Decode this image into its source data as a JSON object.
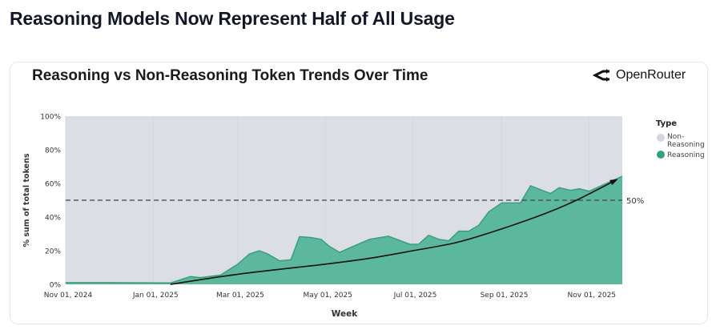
{
  "page": {
    "heading": "Reasoning Models Now Represent Half of All Usage",
    "chart_title": "Reasoning vs Non-Reasoning Token Trends Over Time",
    "brand": "OpenRouter",
    "brand_icon": "openrouter-logo-icon"
  },
  "colors": {
    "reasoning": "#5cb89c",
    "reasoning_line": "#3a9e7c",
    "non_reasoning": "#dcdee6",
    "legend_non": "#d5d7de",
    "legend_reasoning": "#2fa37a"
  },
  "chart_data": {
    "type": "area",
    "title": "Reasoning vs Non-Reasoning Token Trends Over Time",
    "xlabel": "Week",
    "ylabel": "% sum of total tokens",
    "ylim": [
      0,
      100
    ],
    "xlim": [
      "2024-11-01",
      "2025-11-24"
    ],
    "yticks": [
      0,
      20,
      40,
      60,
      80,
      100
    ],
    "ytick_labels": [
      "0%",
      "20%",
      "40%",
      "60%",
      "80%",
      "100%"
    ],
    "xticks": [
      "2024-11-01",
      "2025-01-01",
      "2025-03-01",
      "2025-05-01",
      "2025-07-01",
      "2025-09-01",
      "2025-11-01"
    ],
    "xtick_labels": [
      "Nov 01, 2024",
      "Jan 01, 2025",
      "Mar 01, 2025",
      "May 01, 2025",
      "Jul 01, 2025",
      "Sep 01, 2025",
      "Nov 01, 2025"
    ],
    "legend": {
      "title": "Type",
      "placement": "right",
      "entries": [
        "Non-Reasoning",
        "Reasoning"
      ]
    },
    "reference_line": {
      "value": 50,
      "label": "50%"
    },
    "series": [
      {
        "name": "Reasoning",
        "points": [
          [
            "2024-11-01",
            1
          ],
          [
            "2024-12-01",
            1
          ],
          [
            "2025-01-13",
            0.8
          ],
          [
            "2025-01-27",
            4.6
          ],
          [
            "2025-02-03",
            4
          ],
          [
            "2025-02-17",
            5.5
          ],
          [
            "2025-03-01",
            12
          ],
          [
            "2025-03-09",
            18
          ],
          [
            "2025-03-16",
            20
          ],
          [
            "2025-03-22",
            18
          ],
          [
            "2025-03-30",
            14
          ],
          [
            "2025-04-07",
            14.6
          ],
          [
            "2025-04-13",
            28.4
          ],
          [
            "2025-04-21",
            27.8
          ],
          [
            "2025-04-28",
            26.8
          ],
          [
            "2025-05-04",
            22.5
          ],
          [
            "2025-05-11",
            19
          ],
          [
            "2025-05-18",
            21.7
          ],
          [
            "2025-05-29",
            25.7
          ],
          [
            "2025-06-01",
            26.8
          ],
          [
            "2025-06-14",
            28.6
          ],
          [
            "2025-06-29",
            23.8
          ],
          [
            "2025-07-05",
            23.8
          ],
          [
            "2025-07-12",
            29.2
          ],
          [
            "2025-07-19",
            26.8
          ],
          [
            "2025-07-26",
            25.9
          ],
          [
            "2025-08-02",
            31.6
          ],
          [
            "2025-08-09",
            31.6
          ],
          [
            "2025-08-16",
            35.2
          ],
          [
            "2025-08-23",
            43.2
          ],
          [
            "2025-09-01",
            48.4
          ],
          [
            "2025-09-14",
            48.4
          ],
          [
            "2025-09-21",
            58.6
          ],
          [
            "2025-09-28",
            56.3
          ],
          [
            "2025-10-05",
            54
          ],
          [
            "2025-10-11",
            57.5
          ],
          [
            "2025-10-19",
            55.9
          ],
          [
            "2025-10-25",
            56.8
          ],
          [
            "2025-11-01",
            55.4
          ],
          [
            "2025-11-24",
            64.3
          ]
        ]
      },
      {
        "name": "Non-Reasoning",
        "note_complement": true
      }
    ],
    "trend": {
      "points": [
        [
          "2025-01-13",
          0
        ],
        [
          "2025-03-01",
          6
        ],
        [
          "2025-05-01",
          12
        ],
        [
          "2025-06-01",
          15.5
        ],
        [
          "2025-07-01",
          20
        ],
        [
          "2025-08-01",
          25
        ],
        [
          "2025-09-01",
          33
        ],
        [
          "2025-10-01",
          42
        ],
        [
          "2025-10-23",
          50
        ],
        [
          "2025-11-20",
          62.2
        ]
      ]
    }
  }
}
